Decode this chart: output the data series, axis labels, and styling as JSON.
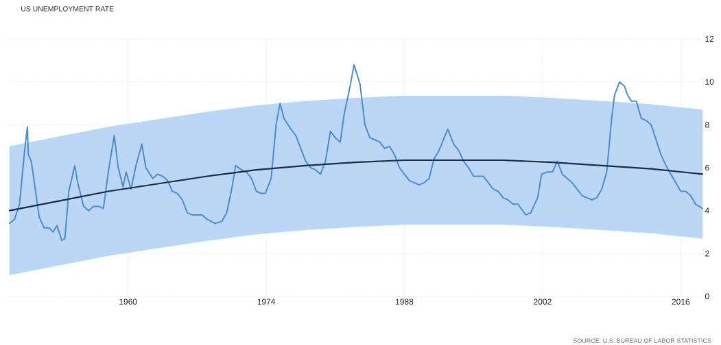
{
  "chart_data": {
    "type": "line",
    "title": "US UNEMPLOYMENT RATE",
    "annotations": [
      "SOURCE: U.S. BUREAU OF LABOR STATISTICS"
    ],
    "xlim": [
      1948,
      2018.2
    ],
    "xticks": [
      1960,
      1974,
      1988,
      2002,
      2016
    ],
    "ylim": [
      0,
      12
    ],
    "yticks": [
      0,
      2,
      4,
      6,
      8,
      10,
      12
    ],
    "grid": true,
    "marker": "none",
    "line_style": "solid",
    "series": [
      {
        "color": "#4a8ccc",
        "x": [
          1948.0,
          1948.5,
          1949.0,
          1949.5,
          1949.8,
          1949.9,
          1950.2,
          1950.6,
          1951.0,
          1951.5,
          1952.0,
          1952.4,
          1952.8,
          1953.3,
          1953.6,
          1954.0,
          1954.6,
          1954.9,
          1955.5,
          1956.0,
          1956.5,
          1957.0,
          1957.5,
          1958.0,
          1958.6,
          1959.0,
          1959.5,
          1959.8,
          1960.3,
          1960.8,
          1961.4,
          1961.8,
          1962.5,
          1963.0,
          1963.5,
          1964.0,
          1964.5,
          1965.0,
          1965.5,
          1966.0,
          1966.5,
          1967.0,
          1967.5,
          1968.0,
          1968.8,
          1969.5,
          1970.0,
          1970.5,
          1970.9,
          1971.5,
          1972.0,
          1972.5,
          1973.0,
          1973.5,
          1973.9,
          1974.5,
          1975.0,
          1975.4,
          1975.8,
          1976.5,
          1977.0,
          1977.5,
          1978.0,
          1978.5,
          1979.0,
          1979.5,
          1980.0,
          1980.5,
          1981.0,
          1981.5,
          1981.9,
          1982.5,
          1982.9,
          1983.5,
          1984.0,
          1984.5,
          1985.0,
          1985.5,
          1986.0,
          1986.5,
          1987.0,
          1987.5,
          1988.0,
          1988.5,
          1989.0,
          1989.5,
          1990.0,
          1990.5,
          1991.0,
          1991.5,
          1992.4,
          1993.0,
          1993.5,
          1994.0,
          1994.5,
          1995.0,
          1995.5,
          1996.0,
          1996.5,
          1997.0,
          1997.5,
          1998.0,
          1998.5,
          1999.0,
          1999.5,
          2000.3,
          2000.8,
          2001.5,
          2001.9,
          2002.5,
          2003.0,
          2003.5,
          2004.0,
          2004.5,
          2005.0,
          2005.5,
          2006.0,
          2006.5,
          2007.0,
          2007.5,
          2008.0,
          2008.5,
          2009.0,
          2009.3,
          2009.8,
          2010.3,
          2010.6,
          2011.0,
          2011.5,
          2012.0,
          2012.5,
          2013.0,
          2013.5,
          2014.0,
          2014.5,
          2015.0,
          2015.5,
          2016.0,
          2016.5,
          2017.0,
          2017.5,
          2018.2
        ],
        "values": [
          3.4,
          3.6,
          4.3,
          6.7,
          7.9,
          6.6,
          6.3,
          5.0,
          3.7,
          3.2,
          3.2,
          3.0,
          3.3,
          2.6,
          2.7,
          4.9,
          6.1,
          5.3,
          4.2,
          4.0,
          4.2,
          4.2,
          4.1,
          5.8,
          7.5,
          6.0,
          5.1,
          5.8,
          5.0,
          6.1,
          7.1,
          6.0,
          5.5,
          5.7,
          5.6,
          5.4,
          4.9,
          4.8,
          4.5,
          3.9,
          3.8,
          3.8,
          3.8,
          3.6,
          3.4,
          3.5,
          3.9,
          5.0,
          6.1,
          5.9,
          5.8,
          5.5,
          4.9,
          4.8,
          4.8,
          5.5,
          8.0,
          9.0,
          8.3,
          7.8,
          7.5,
          6.9,
          6.3,
          6.0,
          5.9,
          5.7,
          6.3,
          7.7,
          7.4,
          7.2,
          8.5,
          9.8,
          10.8,
          9.9,
          8.0,
          7.4,
          7.3,
          7.2,
          6.9,
          7.0,
          6.6,
          6.0,
          5.7,
          5.4,
          5.3,
          5.2,
          5.3,
          5.5,
          6.4,
          6.8,
          7.8,
          7.1,
          6.8,
          6.3,
          6.0,
          5.6,
          5.6,
          5.6,
          5.3,
          5.0,
          4.9,
          4.6,
          4.5,
          4.3,
          4.3,
          3.8,
          3.9,
          4.6,
          5.7,
          5.8,
          5.8,
          6.3,
          5.7,
          5.5,
          5.3,
          5.0,
          4.7,
          4.6,
          4.5,
          4.6,
          5.0,
          5.8,
          8.3,
          9.4,
          10.0,
          9.8,
          9.4,
          9.1,
          9.1,
          8.3,
          8.2,
          8.0,
          7.3,
          6.6,
          6.1,
          5.7,
          5.3,
          4.9,
          4.9,
          4.7,
          4.3,
          4.1
        ]
      },
      {
        "color": "#1c2b44",
        "x": [
          1948,
          1953,
          1958,
          1963,
          1968,
          1973,
          1978,
          1983,
          1988,
          1993,
          1998,
          2003,
          2008,
          2013,
          2018.2
        ],
        "values": [
          4.0,
          4.45,
          4.9,
          5.25,
          5.6,
          5.9,
          6.1,
          6.25,
          6.35,
          6.35,
          6.35,
          6.25,
          6.1,
          5.95,
          5.7
        ],
        "lower": [
          1.0,
          1.45,
          1.9,
          2.25,
          2.6,
          2.9,
          3.1,
          3.25,
          3.35,
          3.35,
          3.35,
          3.25,
          3.1,
          2.95,
          2.7
        ],
        "upper": [
          7.0,
          7.45,
          7.9,
          8.25,
          8.6,
          8.9,
          9.1,
          9.25,
          9.35,
          9.35,
          9.35,
          9.25,
          9.1,
          8.95,
          8.7
        ]
      }
    ]
  }
}
